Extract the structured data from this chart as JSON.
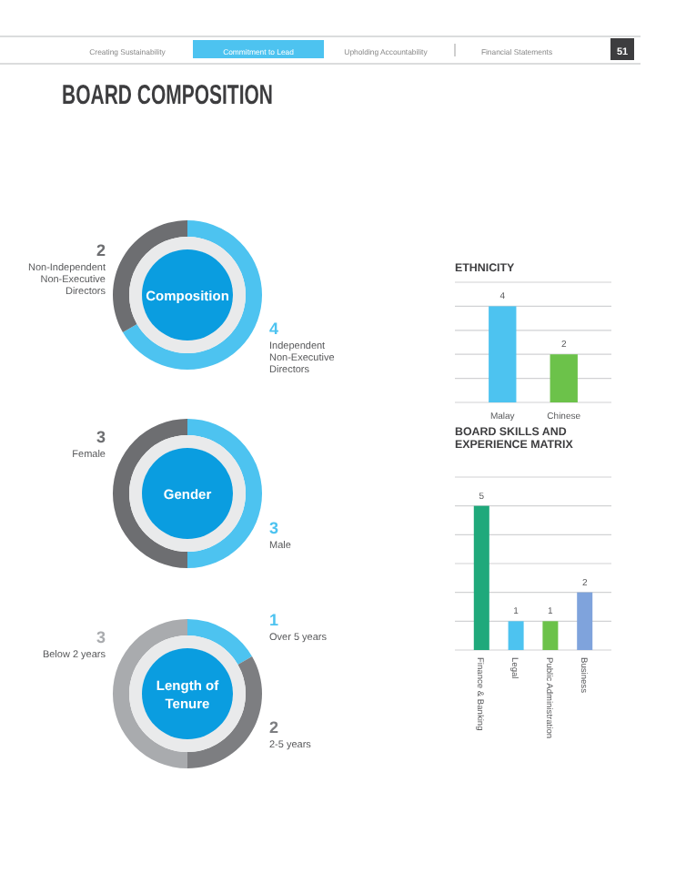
{
  "chart_data": [
    {
      "type": "other",
      "title": "BOARD COMPOSITION",
      "annotations": [
        "Creating Sustainability",
        "Commitment to Lead",
        "Upholding Accountability",
        "Financial Statements",
        "51"
      ]
    },
    {
      "type": "donut",
      "title": "Composition",
      "categories": [
        "Independent Non-Executive Directors",
        "Non-Independent Non-Executive Directors"
      ],
      "values": [
        4,
        2
      ],
      "colors": [
        "#4dc3f0",
        "#6d6e71"
      ],
      "data_labels": true
    },
    {
      "type": "donut",
      "title": "Gender",
      "categories": [
        "Male",
        "Female"
      ],
      "values": [
        3,
        3
      ],
      "colors": [
        "#4dc3f0",
        "#6d6e71"
      ],
      "data_labels": true
    },
    {
      "type": "donut",
      "title": "Length of Tenure",
      "categories": [
        "Over 5 years",
        "2-5 years",
        "Below 2 years"
      ],
      "values": [
        1,
        2,
        3
      ],
      "colors": [
        "#4dc3f0",
        "#7d7e81",
        "#a9abae"
      ],
      "data_labels": true
    },
    {
      "type": "bar",
      "title": "ETHNICITY",
      "categories": [
        "Malay",
        "Chinese"
      ],
      "values": [
        4,
        2
      ],
      "colors": [
        "#4dc3f0",
        "#6cc24a"
      ],
      "ylim": [
        0,
        5
      ],
      "yticks": [
        {
          "value": 1,
          "label": null
        },
        {
          "value": 2,
          "label": null
        },
        {
          "value": 3,
          "label": null
        },
        {
          "value": 4,
          "label": null
        },
        {
          "value": 5,
          "label": null
        }
      ],
      "grid": "y",
      "data_labels": true,
      "tick_labels": "x"
    },
    {
      "type": "bar",
      "title": "BOARD SKILLS AND EXPERIENCE MATRIX",
      "categories": [
        "Finance & Banking",
        "Legal",
        "Public Administration",
        "Business"
      ],
      "values": [
        5,
        1,
        1,
        2
      ],
      "colors": [
        "#1fa97b",
        "#4dc3f0",
        "#6cc24a",
        "#7fa3dc"
      ],
      "ylim": [
        0,
        6
      ],
      "yticks": [
        {
          "value": 1,
          "label": null
        },
        {
          "value": 2,
          "label": null
        },
        {
          "value": 3,
          "label": null
        },
        {
          "value": 4,
          "label": null
        },
        {
          "value": 5,
          "label": null
        },
        {
          "value": 6,
          "label": null
        }
      ],
      "grid": "y",
      "data_labels": true,
      "tick_labels": "x"
    }
  ]
}
